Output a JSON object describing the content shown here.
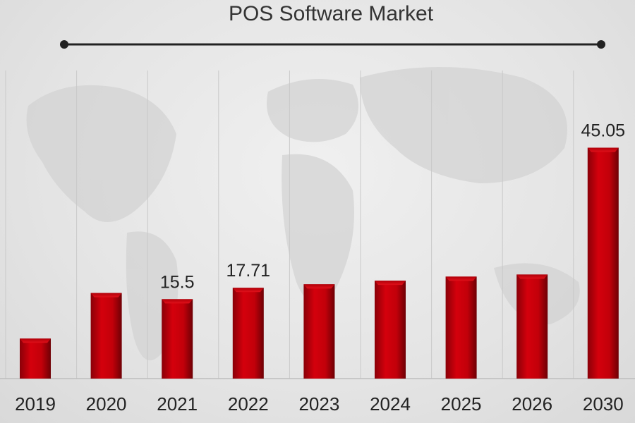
{
  "chart_data": {
    "type": "bar",
    "title": "POS Software Market",
    "categories": [
      "2019",
      "2020",
      "2021",
      "2022",
      "2023",
      "2024",
      "2025",
      "2026",
      "2030"
    ],
    "values": [
      7.8,
      16.7,
      15.5,
      17.71,
      18.4,
      19.1,
      19.9,
      20.3,
      45.05
    ],
    "data_labels": [
      "",
      "",
      "15.5",
      "17.71",
      "",
      "",
      "",
      "",
      "45.05"
    ],
    "xlabel": "",
    "ylabel": "",
    "grid": "vertical",
    "colors": {
      "bar": "#c8000a",
      "bar_dark": "#7a0006",
      "bar_light": "#e8202a"
    }
  }
}
